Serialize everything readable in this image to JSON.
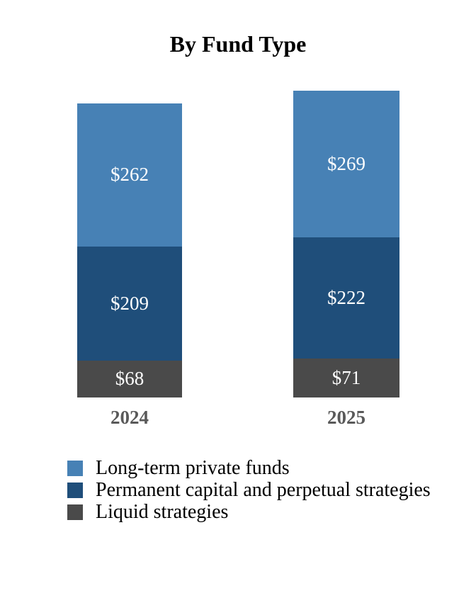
{
  "chart_data": {
    "type": "bar",
    "stacked": true,
    "title": "By Fund Type",
    "categories": [
      "2024",
      "2025"
    ],
    "series": [
      {
        "name": "Long-term private funds",
        "color": "#4781B5",
        "values": [
          262,
          269
        ],
        "value_labels": [
          "$262",
          "$269"
        ]
      },
      {
        "name": "Permanent capital and perpetual strategies",
        "color": "#1F4E7A",
        "values": [
          209,
          222
        ],
        "value_labels": [
          "$209",
          "$222"
        ]
      },
      {
        "name": "Liquid strategies",
        "color": "#4A4A4A",
        "values": [
          68,
          71
        ],
        "value_labels": [
          "$68",
          "$71"
        ]
      }
    ],
    "value_prefix": "$",
    "axes": "none",
    "grid": false,
    "legend_position": "bottom-left",
    "text_colors": {
      "title": "#000000",
      "segment_labels": "#FFFFFF",
      "category_labels": "#595959",
      "legend_labels": "#000000"
    }
  }
}
